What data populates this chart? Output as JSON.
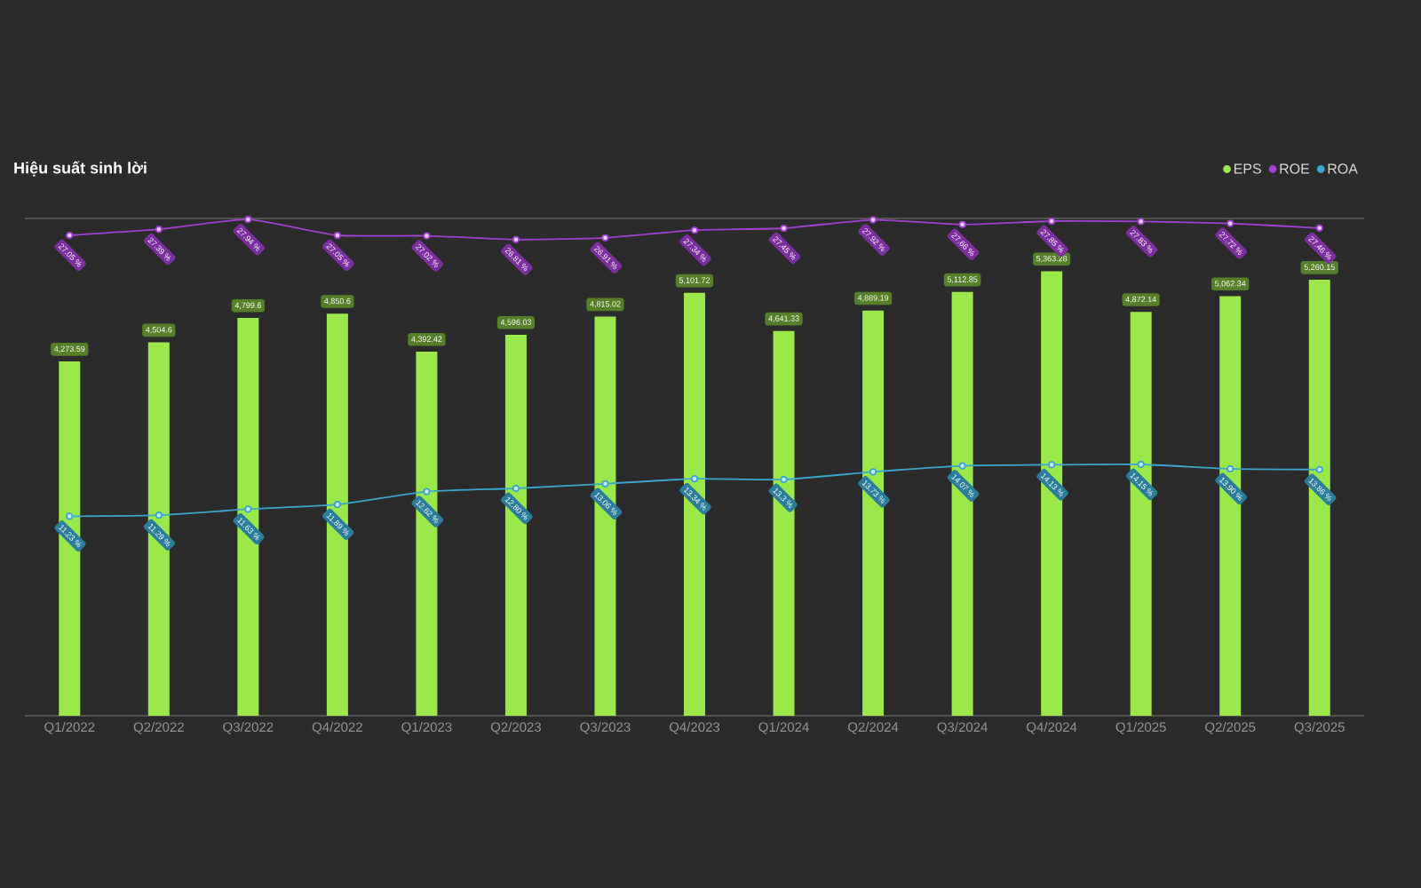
{
  "chart_data": {
    "type": "bar",
    "title": "Hiệu suất sinh lời",
    "categories": [
      "Q1/2022",
      "Q2/2022",
      "Q3/2022",
      "Q4/2022",
      "Q1/2023",
      "Q2/2023",
      "Q3/2023",
      "Q4/2023",
      "Q1/2024",
      "Q2/2024",
      "Q3/2024",
      "Q4/2024",
      "Q1/2025",
      "Q2/2025",
      "Q3/2025"
    ],
    "series": [
      {
        "name": "EPS",
        "axis": "y",
        "color": "#9be84a",
        "values": [
          4273.59,
          4504.6,
          4799.6,
          4850.6,
          4392.42,
          4596.03,
          4815.02,
          5101.72,
          4641.33,
          4889.19,
          5112.85,
          5363.28,
          4872.14,
          5062.34,
          5260.15
        ],
        "value_labels": [
          "4,273.59",
          "4,504.6",
          "4,799.6",
          "4,850.6",
          "4,392.42",
          "4,596.03",
          "4,815.02",
          "5,101.72",
          "4,641.33",
          "4,889.19",
          "5,112.85",
          "5,363.28",
          "4,872.14",
          "5,062.34",
          "5,260.15"
        ]
      },
      {
        "name": "ROE",
        "type": "line",
        "axis": "y2",
        "color": "#a63fd6",
        "marker": "circle",
        "values": [
          27.05,
          27.39,
          27.94,
          27.05,
          27.02,
          26.81,
          26.91,
          27.34,
          27.45,
          27.92,
          27.66,
          27.85,
          27.83,
          27.72,
          27.46
        ],
        "value_labels": [
          "27.05 %",
          "27.39 %",
          "27.94 %",
          "27.05 %",
          "27.02 %",
          "26.81 %",
          "26.91 %",
          "27.34 %",
          "27.45 %",
          "27.92 %",
          "27.66 %",
          "27.85 %",
          "27.83 %",
          "27.72 %",
          "27.46 %"
        ]
      },
      {
        "name": "ROA",
        "type": "line",
        "axis": "y2",
        "color": "#3aa6cf",
        "marker": "circle",
        "values": [
          11.23,
          11.29,
          11.63,
          11.89,
          12.62,
          12.8,
          13.06,
          13.34,
          13.3,
          13.73,
          14.07,
          14.13,
          14.15,
          13.9,
          13.86
        ],
        "value_labels": [
          "11.23 %",
          "11.29 %",
          "11.63 %",
          "11.89 %",
          "12.62 %",
          "12.80 %",
          "13.06 %",
          "13.34 %",
          "13.3 %",
          "13.73 %",
          "14.07 %",
          "14.13 %",
          "14.15 %",
          "13.90 %",
          "13.86 %"
        ]
      }
    ],
    "ylim": [
      0,
      6000
    ],
    "y2lim": [
      0,
      28
    ],
    "tick_labels": "x",
    "legend": "top right"
  }
}
